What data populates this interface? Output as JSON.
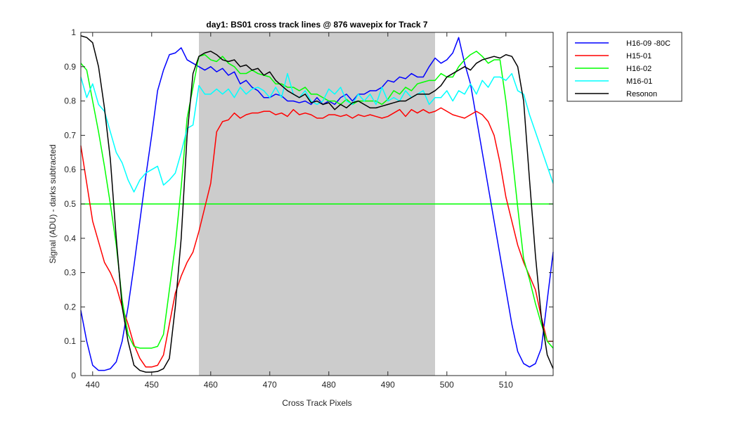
{
  "chart_data": {
    "type": "line",
    "title": "day1: BS01  cross track lines @ 876 wavepix for Track 7",
    "xlabel": "Cross Track Pixels",
    "ylabel": "Signal (ADU) - darks subtracted",
    "xlim": [
      438,
      518
    ],
    "ylim": [
      0,
      1
    ],
    "xticks": [
      440,
      450,
      460,
      470,
      480,
      490,
      500,
      510
    ],
    "yticks": [
      0,
      0.1,
      0.2,
      0.3,
      0.4,
      0.5,
      0.6,
      0.7,
      0.8,
      0.9,
      1
    ],
    "grid": false,
    "legend_position": "outside-top-right",
    "shaded_region": {
      "x": [
        458,
        498
      ],
      "color": "#cccccc"
    },
    "reference_line": {
      "y": 0.5,
      "color": "#00ff00"
    },
    "series": [
      {
        "name": "H16-09 -80C",
        "color": "#0000ff",
        "x": [
          438,
          439,
          440,
          441,
          442,
          443,
          444,
          445,
          446,
          447,
          448,
          449,
          450,
          451,
          452,
          453,
          454,
          455,
          456,
          457,
          458,
          459,
          460,
          461,
          462,
          463,
          464,
          465,
          466,
          467,
          468,
          469,
          470,
          471,
          472,
          473,
          474,
          475,
          476,
          477,
          478,
          479,
          480,
          481,
          482,
          483,
          484,
          485,
          486,
          487,
          488,
          489,
          490,
          491,
          492,
          493,
          494,
          495,
          496,
          497,
          498,
          499,
          500,
          501,
          502,
          503,
          504,
          505,
          506,
          507,
          508,
          509,
          510,
          511,
          512,
          513,
          514,
          515,
          516,
          517,
          518
        ],
        "y": [
          0.19,
          0.1,
          0.03,
          0.015,
          0.015,
          0.02,
          0.04,
          0.1,
          0.2,
          0.32,
          0.45,
          0.58,
          0.7,
          0.83,
          0.89,
          0.935,
          0.94,
          0.955,
          0.92,
          0.91,
          0.9,
          0.89,
          0.9,
          0.885,
          0.895,
          0.875,
          0.885,
          0.85,
          0.86,
          0.84,
          0.83,
          0.81,
          0.81,
          0.82,
          0.815,
          0.8,
          0.8,
          0.795,
          0.8,
          0.79,
          0.81,
          0.79,
          0.8,
          0.79,
          0.81,
          0.82,
          0.8,
          0.82,
          0.82,
          0.83,
          0.83,
          0.84,
          0.86,
          0.855,
          0.87,
          0.865,
          0.88,
          0.87,
          0.87,
          0.9,
          0.925,
          0.91,
          0.92,
          0.94,
          0.985,
          0.91,
          0.85,
          0.75,
          0.65,
          0.55,
          0.45,
          0.35,
          0.25,
          0.15,
          0.07,
          0.035,
          0.025,
          0.035,
          0.08,
          0.22,
          0.36
        ]
      },
      {
        "name": "H15-01",
        "color": "#ff0000",
        "x": [
          438,
          439,
          440,
          441,
          442,
          443,
          444,
          445,
          446,
          447,
          448,
          449,
          450,
          451,
          452,
          453,
          454,
          455,
          456,
          457,
          458,
          459,
          460,
          461,
          462,
          463,
          464,
          465,
          466,
          467,
          468,
          469,
          470,
          471,
          472,
          473,
          474,
          475,
          476,
          477,
          478,
          479,
          480,
          481,
          482,
          483,
          484,
          485,
          486,
          487,
          488,
          489,
          490,
          491,
          492,
          493,
          494,
          495,
          496,
          497,
          498,
          499,
          500,
          501,
          502,
          503,
          504,
          505,
          506,
          507,
          508,
          509,
          510,
          511,
          512,
          513,
          514,
          515,
          516,
          517,
          518
        ],
        "y": [
          0.67,
          0.56,
          0.45,
          0.39,
          0.33,
          0.3,
          0.26,
          0.2,
          0.15,
          0.09,
          0.05,
          0.025,
          0.025,
          0.03,
          0.06,
          0.15,
          0.24,
          0.29,
          0.33,
          0.36,
          0.42,
          0.49,
          0.56,
          0.71,
          0.74,
          0.745,
          0.765,
          0.75,
          0.76,
          0.765,
          0.765,
          0.77,
          0.77,
          0.76,
          0.765,
          0.755,
          0.775,
          0.76,
          0.765,
          0.76,
          0.75,
          0.75,
          0.76,
          0.76,
          0.755,
          0.76,
          0.75,
          0.76,
          0.755,
          0.76,
          0.755,
          0.75,
          0.755,
          0.765,
          0.775,
          0.755,
          0.775,
          0.765,
          0.775,
          0.765,
          0.77,
          0.78,
          0.77,
          0.76,
          0.755,
          0.75,
          0.76,
          0.77,
          0.76,
          0.74,
          0.7,
          0.62,
          0.52,
          0.45,
          0.38,
          0.33,
          0.29,
          0.25,
          0.17,
          0.1,
          0.1
        ]
      },
      {
        "name": "H16-02",
        "color": "#00ff00",
        "x": [
          438,
          439,
          440,
          441,
          442,
          443,
          444,
          445,
          446,
          447,
          448,
          449,
          450,
          451,
          452,
          453,
          454,
          455,
          456,
          457,
          458,
          459,
          460,
          461,
          462,
          463,
          464,
          465,
          466,
          467,
          468,
          469,
          470,
          471,
          472,
          473,
          474,
          475,
          476,
          477,
          478,
          479,
          480,
          481,
          482,
          483,
          484,
          485,
          486,
          487,
          488,
          489,
          490,
          491,
          492,
          493,
          494,
          495,
          496,
          497,
          498,
          499,
          500,
          501,
          502,
          503,
          504,
          505,
          506,
          507,
          508,
          509,
          510,
          511,
          512,
          513,
          514,
          515,
          516,
          517,
          518
        ],
        "y": [
          0.91,
          0.89,
          0.8,
          0.71,
          0.61,
          0.5,
          0.38,
          0.22,
          0.12,
          0.085,
          0.08,
          0.08,
          0.08,
          0.085,
          0.12,
          0.25,
          0.38,
          0.55,
          0.75,
          0.84,
          0.93,
          0.935,
          0.92,
          0.915,
          0.93,
          0.91,
          0.9,
          0.88,
          0.88,
          0.89,
          0.88,
          0.875,
          0.87,
          0.85,
          0.85,
          0.84,
          0.84,
          0.83,
          0.84,
          0.82,
          0.82,
          0.81,
          0.8,
          0.8,
          0.79,
          0.805,
          0.79,
          0.8,
          0.8,
          0.8,
          0.8,
          0.79,
          0.805,
          0.83,
          0.82,
          0.84,
          0.83,
          0.85,
          0.855,
          0.86,
          0.86,
          0.88,
          0.87,
          0.87,
          0.9,
          0.92,
          0.935,
          0.945,
          0.93,
          0.91,
          0.92,
          0.92,
          0.8,
          0.65,
          0.49,
          0.34,
          0.28,
          0.21,
          0.15,
          0.1,
          0.08
        ]
      },
      {
        "name": "M16-01",
        "color": "#00ffff",
        "x": [
          438,
          439,
          440,
          441,
          442,
          443,
          444,
          445,
          446,
          447,
          448,
          449,
          450,
          451,
          452,
          453,
          454,
          455,
          456,
          457,
          458,
          459,
          460,
          461,
          462,
          463,
          464,
          465,
          466,
          467,
          468,
          469,
          470,
          471,
          472,
          473,
          474,
          475,
          476,
          477,
          478,
          479,
          480,
          481,
          482,
          483,
          484,
          485,
          486,
          487,
          488,
          489,
          490,
          491,
          492,
          493,
          494,
          495,
          496,
          497,
          498,
          499,
          500,
          501,
          502,
          503,
          504,
          505,
          506,
          507,
          508,
          509,
          510,
          511,
          512,
          513,
          514,
          515,
          516,
          517,
          518
        ],
        "y": [
          0.87,
          0.81,
          0.85,
          0.79,
          0.77,
          0.71,
          0.65,
          0.62,
          0.57,
          0.535,
          0.57,
          0.59,
          0.6,
          0.61,
          0.555,
          0.57,
          0.59,
          0.65,
          0.72,
          0.73,
          0.845,
          0.82,
          0.82,
          0.835,
          0.82,
          0.835,
          0.81,
          0.84,
          0.82,
          0.835,
          0.84,
          0.83,
          0.81,
          0.84,
          0.81,
          0.88,
          0.82,
          0.81,
          0.83,
          0.8,
          0.79,
          0.8,
          0.835,
          0.82,
          0.84,
          0.8,
          0.79,
          0.82,
          0.8,
          0.82,
          0.79,
          0.84,
          0.8,
          0.81,
          0.8,
          0.83,
          0.81,
          0.82,
          0.83,
          0.79,
          0.81,
          0.81,
          0.83,
          0.8,
          0.83,
          0.82,
          0.85,
          0.82,
          0.86,
          0.84,
          0.87,
          0.87,
          0.86,
          0.88,
          0.83,
          0.82,
          0.76,
          0.71,
          0.66,
          0.61,
          0.56
        ]
      },
      {
        "name": "Resonon",
        "color": "#000000",
        "x": [
          438,
          439,
          440,
          441,
          442,
          443,
          444,
          445,
          446,
          447,
          448,
          449,
          450,
          451,
          452,
          453,
          454,
          455,
          456,
          457,
          458,
          459,
          460,
          461,
          462,
          463,
          464,
          465,
          466,
          467,
          468,
          469,
          470,
          471,
          472,
          473,
          474,
          475,
          476,
          477,
          478,
          479,
          480,
          481,
          482,
          483,
          484,
          485,
          486,
          487,
          488,
          489,
          490,
          491,
          492,
          493,
          494,
          495,
          496,
          497,
          498,
          499,
          500,
          501,
          502,
          503,
          504,
          505,
          506,
          507,
          508,
          509,
          510,
          511,
          512,
          513,
          514,
          515,
          516,
          517,
          518
        ],
        "y": [
          0.99,
          0.985,
          0.97,
          0.9,
          0.78,
          0.63,
          0.4,
          0.2,
          0.1,
          0.03,
          0.015,
          0.01,
          0.01,
          0.012,
          0.02,
          0.05,
          0.2,
          0.4,
          0.7,
          0.88,
          0.93,
          0.94,
          0.945,
          0.935,
          0.92,
          0.915,
          0.92,
          0.9,
          0.905,
          0.89,
          0.895,
          0.875,
          0.885,
          0.86,
          0.845,
          0.83,
          0.82,
          0.81,
          0.82,
          0.795,
          0.8,
          0.79,
          0.795,
          0.775,
          0.79,
          0.78,
          0.795,
          0.8,
          0.79,
          0.78,
          0.78,
          0.785,
          0.79,
          0.795,
          0.8,
          0.8,
          0.81,
          0.82,
          0.82,
          0.82,
          0.83,
          0.845,
          0.87,
          0.88,
          0.89,
          0.9,
          0.89,
          0.91,
          0.92,
          0.925,
          0.93,
          0.925,
          0.935,
          0.93,
          0.9,
          0.8,
          0.57,
          0.35,
          0.17,
          0.06,
          0.02
        ]
      }
    ]
  }
}
